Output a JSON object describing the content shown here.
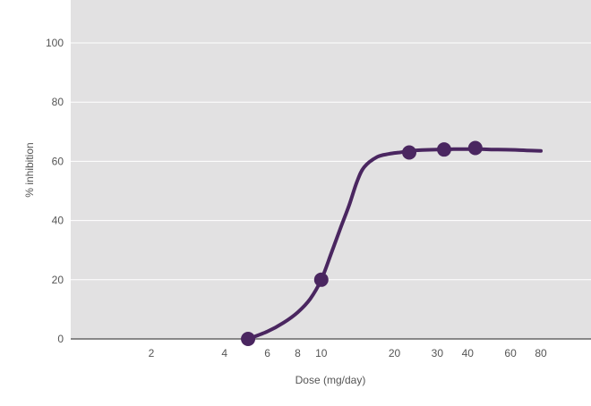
{
  "chart_data": {
    "type": "line",
    "title": "",
    "xlabel": "Dose (mg/day)",
    "ylabel": "% inhibition",
    "x_scale": "log",
    "xlim": [
      1,
      100
    ],
    "ylim": [
      0,
      100
    ],
    "x_ticks": [
      2,
      4,
      6,
      8,
      10,
      20,
      30,
      40,
      60,
      80
    ],
    "y_ticks": [
      0,
      20,
      40,
      60,
      80,
      100
    ],
    "grid": {
      "horizontal": true,
      "vertical": false
    },
    "series": [
      {
        "curve": {
          "x": [
            5,
            6,
            7,
            8,
            9,
            10,
            11,
            12,
            13,
            14,
            15,
            17,
            19,
            21,
            23,
            26,
            30,
            35,
            40,
            45,
            50,
            60,
            70,
            80
          ],
          "y": [
            0,
            2.5,
            5.5,
            9,
            13.5,
            20,
            29,
            37.5,
            45,
            53,
            58,
            61.5,
            62.5,
            63,
            63.5,
            63.8,
            64,
            64.1,
            64.1,
            64.1,
            64,
            63.9,
            63.7,
            63.5
          ]
        },
        "points": {
          "x": [
            5,
            10,
            23,
            32,
            43
          ],
          "y": [
            0,
            20,
            63,
            64,
            64.5
          ]
        }
      }
    ]
  },
  "colors": {
    "plot_background": "#e2e1e2",
    "gridline": "#ffffff",
    "axis_line": "#666666",
    "series": "#4a2660"
  }
}
